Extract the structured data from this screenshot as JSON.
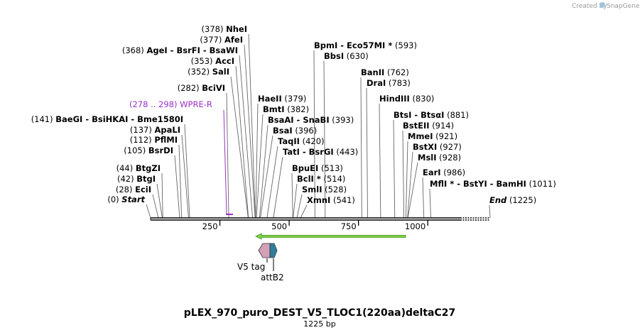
{
  "credit": {
    "text": "Created by",
    "brand": "SnapGene"
  },
  "title": "pLEX_970_puro_DEST_V5_TLOC1(220aa)deltaC27",
  "subtitle": "1225 bp",
  "sequence_length": 1225,
  "colors": {
    "primer": "#9b30c8",
    "orf": "#7fd24a",
    "v5tag": "#d3a0b8",
    "attb2": "#2e7f9e"
  },
  "ticks": [
    {
      "bp": 250,
      "label": "250"
    },
    {
      "bp": 500,
      "label": "500"
    },
    {
      "bp": 750,
      "label": "750"
    },
    {
      "bp": 1000,
      "label": "1000"
    }
  ],
  "sites": [
    {
      "pos": 0,
      "pos_label": "(0)",
      "names": [
        "Start"
      ],
      "side": "left",
      "italic": true
    },
    {
      "pos": 28,
      "pos_label": "(28)",
      "names": [
        "EciI"
      ],
      "side": "left"
    },
    {
      "pos": 42,
      "pos_label": "(42)",
      "names": [
        "BtgI"
      ],
      "side": "left"
    },
    {
      "pos": 44,
      "pos_label": "(44)",
      "names": [
        "BtgZI"
      ],
      "side": "left"
    },
    {
      "pos": 105,
      "pos_label": "(105)",
      "names": [
        "BsrDI"
      ],
      "side": "left"
    },
    {
      "pos": 112,
      "pos_label": "(112)",
      "names": [
        "PflMI"
      ],
      "side": "left"
    },
    {
      "pos": 137,
      "pos_label": "(137)",
      "names": [
        "ApaLI"
      ],
      "side": "left"
    },
    {
      "pos": 141,
      "pos_label": "(141)",
      "names": [
        "BaeGI",
        "BsiHKAI",
        "Bme1580I"
      ],
      "side": "left"
    },
    {
      "pos": 282,
      "pos_label": "(282)",
      "names": [
        "BciVI"
      ],
      "side": "left"
    },
    {
      "pos": 352,
      "pos_label": "(352)",
      "names": [
        "SalI"
      ],
      "side": "left"
    },
    {
      "pos": 353,
      "pos_label": "(353)",
      "names": [
        "AccI"
      ],
      "side": "left"
    },
    {
      "pos": 368,
      "pos_label": "(368)",
      "names": [
        "AgeI",
        "BsrFI",
        "BsaWI"
      ],
      "side": "left"
    },
    {
      "pos": 377,
      "pos_label": "(377)",
      "names": [
        "AfeI"
      ],
      "side": "left"
    },
    {
      "pos": 378,
      "pos_label": "(378)",
      "names": [
        "NheI"
      ],
      "side": "left"
    },
    {
      "pos": 379,
      "pos_label": "(379)",
      "names": [
        "HaeII"
      ],
      "side": "right"
    },
    {
      "pos": 382,
      "pos_label": "(382)",
      "names": [
        "BmtI"
      ],
      "side": "right"
    },
    {
      "pos": 393,
      "pos_label": "(393)",
      "names": [
        "BsaAI",
        "SnaBI"
      ],
      "side": "right"
    },
    {
      "pos": 396,
      "pos_label": "(396)",
      "names": [
        "BsaI"
      ],
      "side": "right"
    },
    {
      "pos": 420,
      "pos_label": "(420)",
      "names": [
        "TaqII"
      ],
      "side": "right"
    },
    {
      "pos": 443,
      "pos_label": "(443)",
      "names": [
        "TatI",
        "BsrGI"
      ],
      "side": "right"
    },
    {
      "pos": 513,
      "pos_label": "(513)",
      "names": [
        "BpuEI"
      ],
      "side": "right"
    },
    {
      "pos": 514,
      "pos_label": "(514)",
      "names": [
        "BclI *"
      ],
      "side": "right"
    },
    {
      "pos": 528,
      "pos_label": "(528)",
      "names": [
        "SmlI"
      ],
      "side": "right"
    },
    {
      "pos": 541,
      "pos_label": "(541)",
      "names": [
        "XmnI"
      ],
      "side": "right"
    },
    {
      "pos": 593,
      "pos_label": "(593)",
      "names": [
        "BpmI",
        "Eco57MI *"
      ],
      "side": "right"
    },
    {
      "pos": 630,
      "pos_label": "(630)",
      "names": [
        "BbsI"
      ],
      "side": "right"
    },
    {
      "pos": 762,
      "pos_label": "(762)",
      "names": [
        "BanII"
      ],
      "side": "right"
    },
    {
      "pos": 783,
      "pos_label": "(783)",
      "names": [
        "DraI"
      ],
      "side": "right"
    },
    {
      "pos": 830,
      "pos_label": "(830)",
      "names": [
        "HindIII"
      ],
      "side": "right"
    },
    {
      "pos": 881,
      "pos_label": "(881)",
      "names": [
        "BtsI",
        "BtsαI"
      ],
      "side": "right"
    },
    {
      "pos": 914,
      "pos_label": "(914)",
      "names": [
        "BstEII"
      ],
      "side": "right"
    },
    {
      "pos": 921,
      "pos_label": "(921)",
      "names": [
        "MmeI"
      ],
      "side": "right"
    },
    {
      "pos": 927,
      "pos_label": "(927)",
      "names": [
        "BstXI"
      ],
      "side": "right"
    },
    {
      "pos": 928,
      "pos_label": "(928)",
      "names": [
        "MslI"
      ],
      "side": "right"
    },
    {
      "pos": 986,
      "pos_label": "(986)",
      "names": [
        "EarI"
      ],
      "side": "right"
    },
    {
      "pos": 1011,
      "pos_label": "(1011)",
      "names": [
        "MflI *",
        "BstYI",
        "BamHI"
      ],
      "side": "right"
    },
    {
      "pos": 1225,
      "pos_label": "(1225)",
      "names": [
        "End"
      ],
      "side": "right",
      "italic": true
    }
  ],
  "primer": {
    "label": "(278 .. 298)  WPRE-R",
    "start": 278,
    "end": 298
  },
  "features": [
    {
      "name": "ORF",
      "start": 400,
      "end": 920,
      "label": ""
    },
    {
      "name": "V5 tag",
      "start": 395,
      "end": 437,
      "label": "V5 tag"
    },
    {
      "name": "attB2",
      "start": 437,
      "end": 461,
      "label": "attB2"
    }
  ]
}
